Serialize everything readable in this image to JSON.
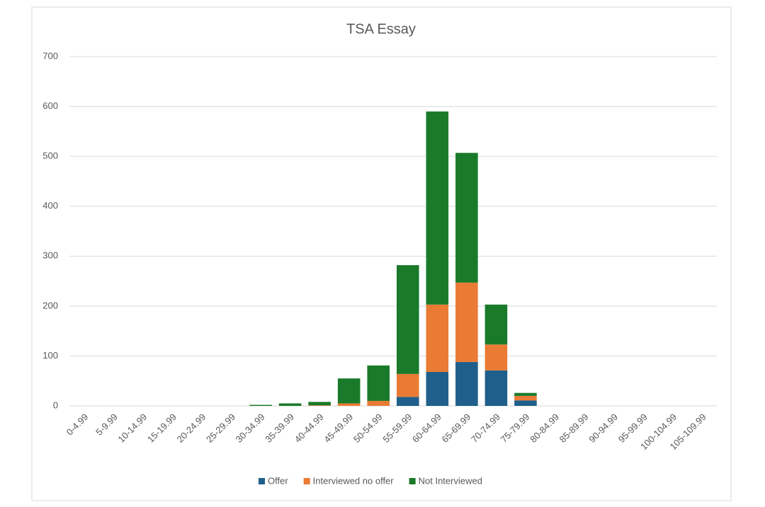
{
  "chart_data": {
    "type": "bar",
    "stacked": true,
    "title": "TSA Essay",
    "categories": [
      "0-4.99",
      "5-9.99",
      "10-14.99",
      "15-19.99",
      "20-24.99",
      "25-29.99",
      "30-34.99",
      "35-39.99",
      "40-44.99",
      "45-49.99",
      "50-54.99",
      "55-59.99",
      "60-64.99",
      "65-69.99",
      "70-74.99",
      "75-79.99",
      "80-84.99",
      "85-89.99",
      "90-94.99",
      "95-99.99",
      "100-104.99",
      "105-109.99"
    ],
    "series": [
      {
        "name": "Offer",
        "color": "#1f5f8b",
        "values": [
          0,
          0,
          0,
          0,
          0,
          0,
          0,
          0,
          0,
          0,
          0,
          18,
          68,
          88,
          71,
          11,
          0,
          0,
          0,
          0,
          0,
          0
        ]
      },
      {
        "name": "Interviewed no offer",
        "color": "#e97b35",
        "values": [
          0,
          0,
          0,
          0,
          0,
          0,
          0,
          0,
          1,
          5,
          10,
          46,
          135,
          159,
          52,
          9,
          0,
          0,
          0,
          0,
          0,
          0
        ]
      },
      {
        "name": "Not Interviewed",
        "color": "#1a7a2a",
        "values": [
          0,
          0,
          0,
          0,
          0,
          0,
          2,
          5,
          7,
          50,
          71,
          218,
          387,
          260,
          80,
          6,
          0,
          0,
          0,
          0,
          0,
          0
        ]
      }
    ],
    "ylim": [
      0,
      700
    ],
    "yticks": [
      0,
      100,
      200,
      300,
      400,
      500,
      600,
      700
    ],
    "grid": true,
    "legend": "bottom"
  }
}
